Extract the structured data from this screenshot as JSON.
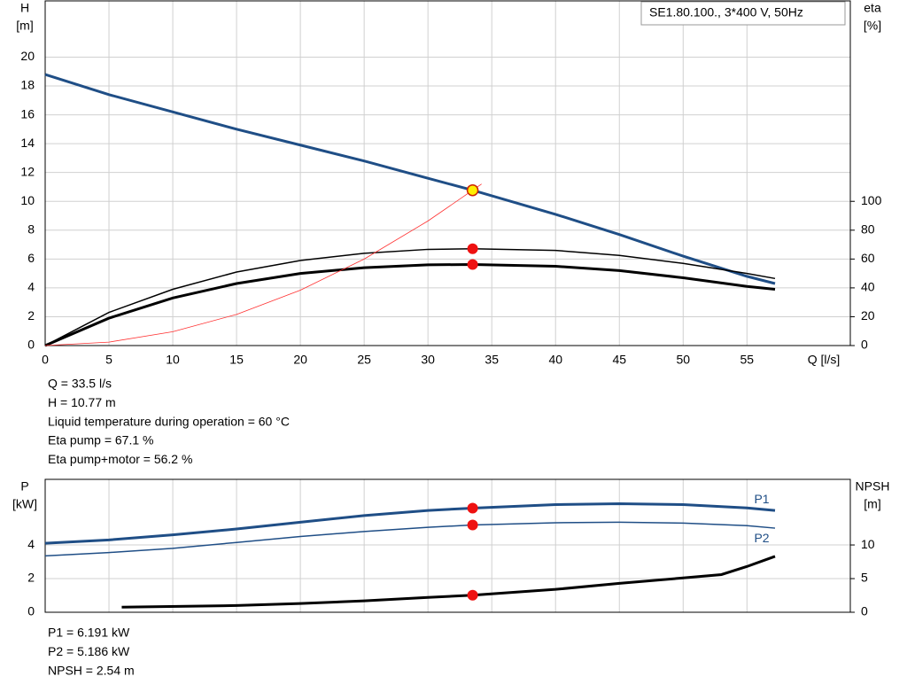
{
  "chart_data": [
    {
      "type": "line",
      "ylabel": "H",
      "yunit": "[m]",
      "y2label": "eta",
      "y2unit": "[%]",
      "xlabel": "Q [l/s]",
      "legend": "SE1.80.100., 3*400 V, 50Hz",
      "xlim": [
        0,
        63.1
      ],
      "xticks": [
        0,
        5,
        10,
        15,
        20,
        25,
        30,
        35,
        40,
        45,
        50,
        55
      ],
      "ylim": [
        0,
        23.9
      ],
      "yticks": [
        0,
        2,
        4,
        6,
        8,
        10,
        12,
        14,
        16,
        18,
        20
      ],
      "y2lim": [
        0,
        239
      ],
      "y2ticks": [
        0,
        20,
        40,
        60,
        80,
        100
      ],
      "grid": true,
      "show_xtick_labels": true,
      "series": [
        {
          "color": "#1f4e86",
          "line_width": 3,
          "axis": "y",
          "x": [
            0,
            5,
            10,
            15,
            20,
            25,
            30,
            33.5,
            40,
            45,
            50,
            55,
            57.2
          ],
          "values": [
            18.8,
            17.4,
            16.2,
            15.0,
            13.9,
            12.8,
            11.6,
            10.77,
            9.1,
            7.7,
            6.2,
            4.8,
            4.3
          ]
        },
        {
          "color": "#000000",
          "line_width": 1.5,
          "axis": "y2",
          "x": [
            0,
            5,
            10,
            15,
            20,
            25,
            30,
            33.5,
            40,
            45,
            50,
            55,
            57.2
          ],
          "values": [
            0,
            23,
            39,
            51,
            59,
            64,
            66.7,
            67.1,
            66,
            62.5,
            57,
            50,
            46.5
          ]
        },
        {
          "color": "#000000",
          "line_width": 3,
          "axis": "y2",
          "x": [
            0,
            5,
            10,
            15,
            20,
            25,
            30,
            33.5,
            40,
            45,
            50,
            55,
            57.2
          ],
          "values": [
            0,
            19,
            33,
            43,
            50,
            54,
            56,
            56.2,
            55,
            52,
            47,
            41,
            39
          ]
        },
        {
          "color": "#ff3030",
          "line_width": 0.8,
          "axis": "y",
          "x": [
            0,
            5,
            10,
            15,
            20,
            25,
            30,
            33.5,
            34.2
          ],
          "values": [
            0,
            0.24,
            0.96,
            2.16,
            3.84,
            6.0,
            8.64,
            10.77,
            11.2
          ]
        }
      ],
      "points": [
        {
          "x": 33.5,
          "y": 67.1,
          "axis": "y2",
          "color": "#ee1111"
        },
        {
          "x": 33.5,
          "y": 56.2,
          "axis": "y2",
          "color": "#ee1111"
        },
        {
          "x": 33.5,
          "y": 10.77,
          "axis": "y",
          "color": "#ffee00"
        }
      ],
      "annotations": [
        "Q = 33.5 l/s",
        "H = 10.77 m",
        "Liquid temperature during operation = 60 °C",
        "Eta pump = 67.1 %",
        "Eta pump+motor = 56.2 %"
      ]
    },
    {
      "type": "line",
      "ylabel": "P",
      "yunit": "[kW]",
      "y2label": "NPSH",
      "y2unit": "[m]",
      "xlim": [
        0,
        63.1
      ],
      "xticks": [
        0,
        5,
        10,
        15,
        20,
        25,
        30,
        35,
        40,
        45,
        50,
        55
      ],
      "ylim": [
        0,
        7.9
      ],
      "yticks": [
        0,
        2,
        4
      ],
      "y2lim": [
        0,
        19.75
      ],
      "y2ticks": [
        0,
        5,
        10
      ],
      "grid": true,
      "show_xtick_labels": false,
      "series": [
        {
          "name": "P1",
          "color": "#1f4e86",
          "line_width": 3,
          "axis": "y",
          "x": [
            0,
            5,
            10,
            15,
            20,
            25,
            30,
            33.5,
            40,
            45,
            50,
            55,
            57.2
          ],
          "values": [
            4.1,
            4.3,
            4.6,
            4.95,
            5.35,
            5.75,
            6.05,
            6.191,
            6.4,
            6.45,
            6.4,
            6.2,
            6.05
          ]
        },
        {
          "name": "P2",
          "color": "#1f4e86",
          "line_width": 1.5,
          "axis": "y",
          "x": [
            0,
            5,
            10,
            15,
            20,
            25,
            30,
            33.5,
            40,
            45,
            50,
            55,
            57.2
          ],
          "values": [
            3.35,
            3.55,
            3.8,
            4.15,
            4.5,
            4.8,
            5.05,
            5.186,
            5.32,
            5.35,
            5.3,
            5.15,
            5.0
          ]
        },
        {
          "color": "#000000",
          "line_width": 3,
          "axis": "y2",
          "x": [
            6,
            15,
            20,
            25,
            30,
            33.5,
            40,
            45,
            50,
            53,
            55,
            57.2
          ],
          "values": [
            0.75,
            1.0,
            1.3,
            1.7,
            2.2,
            2.54,
            3.4,
            4.3,
            5.1,
            5.6,
            6.8,
            8.3
          ]
        }
      ],
      "points": [
        {
          "x": 33.5,
          "y": 6.191,
          "axis": "y",
          "color": "#ee1111"
        },
        {
          "x": 33.5,
          "y": 5.186,
          "axis": "y",
          "color": "#ee1111"
        },
        {
          "x": 33.5,
          "y": 2.54,
          "axis": "y2",
          "color": "#ee1111"
        }
      ],
      "annotations": [
        "P1 = 6.191 kW",
        "P2 = 5.186 kW",
        "NPSH = 2.54 m"
      ]
    }
  ]
}
